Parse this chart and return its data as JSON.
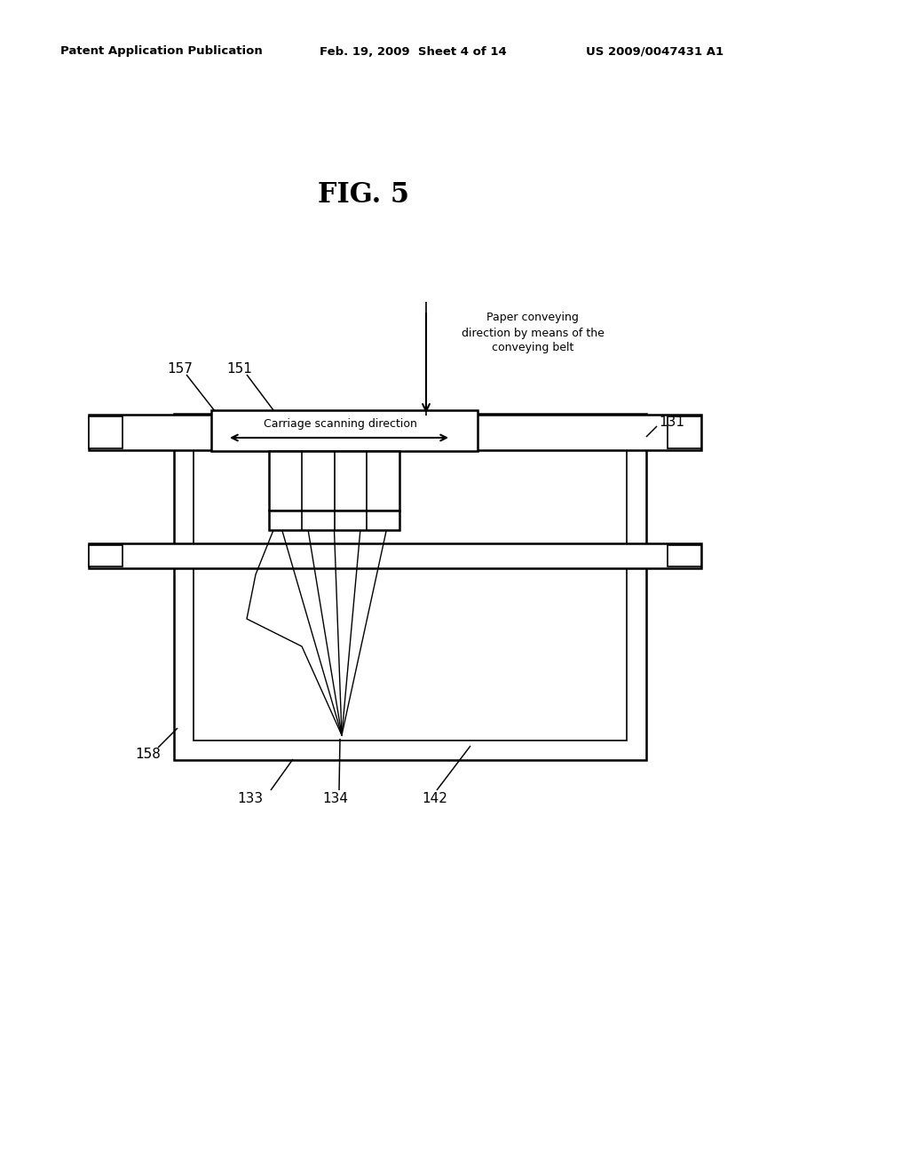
{
  "bg_color": "#ffffff",
  "header_left": "Patent Application Publication",
  "header_mid": "Feb. 19, 2009  Sheet 4 of 14",
  "header_right": "US 2009/0047431 A1",
  "fig_title": "FIG. 5",
  "label_157": "157",
  "label_151": "151",
  "label_131": "131",
  "label_158": "158",
  "label_133": "133",
  "label_134": "134",
  "label_142": "142",
  "carriage_text": "Carriage scanning direction",
  "paper_conveying_text": "Paper conveying\ndirection by means of the\nconveying belt"
}
